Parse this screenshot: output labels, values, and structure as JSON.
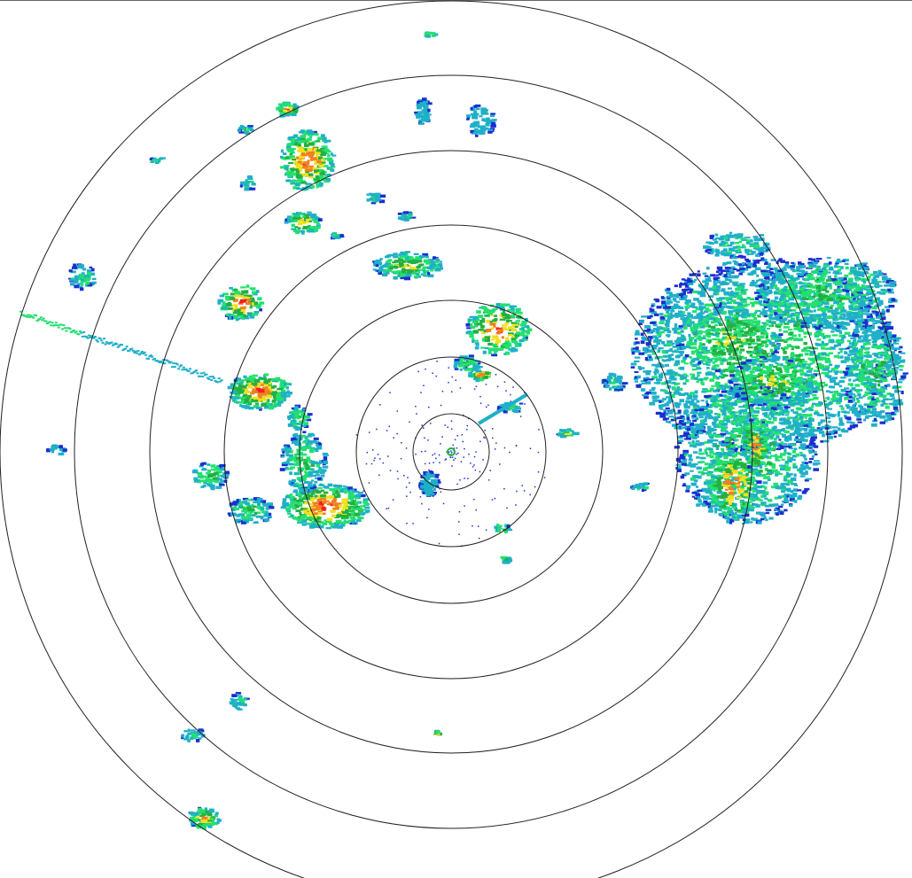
{
  "radar": {
    "range_ring_count": 7,
    "ring_color": "#222222",
    "reflectivity_palette": [
      "#1a2fd0",
      "#1fb0c8",
      "#22e070",
      "#22b040",
      "#f0e020",
      "#f08020",
      "#ee2020"
    ]
  }
}
